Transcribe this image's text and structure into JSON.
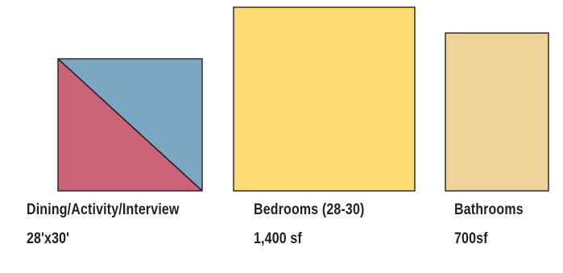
{
  "colors": {
    "dining_red": "#cc6479",
    "dining_blue": "#7ba7c2",
    "bedrooms_yellow": "#ffdb75",
    "bathrooms_tan": "#eed49a",
    "outline": "#231f20",
    "text": "#231f20"
  },
  "rooms": [
    {
      "name": "Dining/Activity/Interview",
      "size": "28'x30'"
    },
    {
      "name": "Bedrooms (28-30)",
      "size": "1,400 sf"
    },
    {
      "name": "Bathrooms",
      "size": "700sf"
    }
  ]
}
